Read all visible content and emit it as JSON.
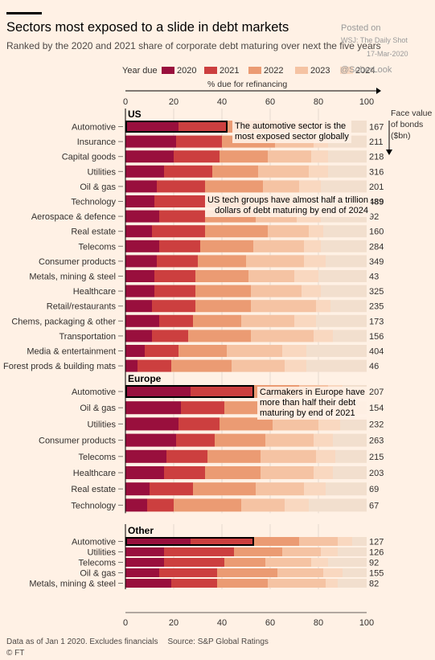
{
  "header": {
    "title": "Sectors most exposed to a slide in debt markets",
    "subtitle": "Ranked by the 2020 and 2021 share of corporate debt maturing over next the five years"
  },
  "watermark": {
    "posted_on": "Posted on",
    "source": "WSJ: The Daily Shot",
    "date": "17-Mar-2020",
    "handle": "@SoberLook"
  },
  "legend": {
    "title": "Year due",
    "items": [
      {
        "label": "2020",
        "color": "#990f3d"
      },
      {
        "label": "2021",
        "color": "#cc3f3f"
      },
      {
        "label": "2022",
        "color": "#eb9b73"
      },
      {
        "label": "2023",
        "color": "#f5c3a3"
      },
      {
        "label": "2024",
        "color": "#f9d8c0"
      }
    ]
  },
  "axis": {
    "label": "% due for refinancing",
    "ticks": [
      "0",
      "20",
      "40",
      "60",
      "80",
      "100"
    ]
  },
  "face_value_label": [
    "Face value",
    "of bonds",
    "($bn)"
  ],
  "annotations": [
    {
      "text": [
        "The automotive sector is the",
        "most exposed sector globally"
      ]
    },
    {
      "text": [
        "US tech groups have almost half a trillion",
        "dollars of debt maturing by end of 2024"
      ]
    },
    {
      "text": [
        "Carmakers in Europe have",
        "more than half their debt",
        "maturing by end of 2021"
      ]
    }
  ],
  "footer": {
    "note": "Data as of Jan 1 2020. Excludes financials",
    "source": "Source: S&P Global Ratings",
    "credit": "© FT"
  },
  "chart_data": {
    "type": "bar",
    "orientation": "horizontal-stacked",
    "xlim": [
      0,
      100
    ],
    "series_names": [
      "2020",
      "2021",
      "2022",
      "2023",
      "2024"
    ],
    "groups": [
      {
        "name": "US",
        "rows": [
          {
            "label": "Automotive",
            "values": [
              22,
              20,
              22,
              16,
              6
            ],
            "face_value": "167",
            "highlight": true
          },
          {
            "label": "Insurance",
            "values": [
              21,
              19,
              22,
              16,
              6
            ],
            "face_value": "211"
          },
          {
            "label": "Capital goods",
            "values": [
              20,
              19,
              20,
              18,
              7
            ],
            "face_value": "218"
          },
          {
            "label": "Utilities",
            "values": [
              16,
              20,
              19,
              21,
              8
            ],
            "face_value": "316"
          },
          {
            "label": "Oil & gas",
            "values": [
              13,
              20,
              24,
              15,
              9
            ],
            "face_value": "201"
          },
          {
            "label": "Technology",
            "values": [
              12,
              21,
              17,
              19,
              9
            ],
            "face_value": "489"
          },
          {
            "label": "Aerospace & defence",
            "values": [
              14,
              19,
              21,
              17,
              10
            ],
            "face_value": "92"
          },
          {
            "label": "Real estate",
            "values": [
              11,
              22,
              26,
              17,
              6
            ],
            "face_value": "160"
          },
          {
            "label": "Telecoms",
            "values": [
              14,
              17,
              22,
              21,
              7
            ],
            "face_value": "284"
          },
          {
            "label": "Consumer products",
            "values": [
              13,
              17,
              20,
              24,
              9
            ],
            "face_value": "349"
          },
          {
            "label": "Metals, mining & steel",
            "values": [
              12,
              17,
              22,
              19,
              10
            ],
            "face_value": "43"
          },
          {
            "label": "Healthcare",
            "values": [
              12,
              17,
              23,
              21,
              8
            ],
            "face_value": "325"
          },
          {
            "label": "Retail/restaurants",
            "values": [
              11,
              18,
              23,
              27,
              6
            ],
            "face_value": "235"
          },
          {
            "label": "Chems, packaging & other",
            "values": [
              14,
              14,
              20,
              22,
              9
            ],
            "face_value": "173"
          },
          {
            "label": "Transportation",
            "values": [
              11,
              15,
              26,
              26,
              8
            ],
            "face_value": "156"
          },
          {
            "label": "Media & entertainment",
            "values": [
              8,
              14,
              20,
              23,
              10
            ],
            "face_value": "404"
          },
          {
            "label": "Forest prods & building mats",
            "values": [
              5,
              14,
              25,
              22,
              9
            ],
            "face_value": "46"
          }
        ]
      },
      {
        "name": "Europe",
        "rows": [
          {
            "label": "Automotive",
            "values": [
              27,
              26,
              19,
              12,
              6
            ],
            "face_value": "207",
            "highlight": true
          },
          {
            "label": "Oil & gas",
            "values": [
              23,
              18,
              22,
              18,
              8
            ],
            "face_value": "154"
          },
          {
            "label": "Utilities",
            "values": [
              22,
              17,
              22,
              19,
              9
            ],
            "face_value": "232"
          },
          {
            "label": "Consumer products",
            "values": [
              21,
              16,
              21,
              20,
              8
            ],
            "face_value": "263"
          },
          {
            "label": "Telecoms",
            "values": [
              17,
              17,
              22,
              23,
              8
            ],
            "face_value": "215"
          },
          {
            "label": "Healthcare",
            "values": [
              16,
              17,
              23,
              22,
              8
            ],
            "face_value": "203"
          },
          {
            "label": "Real estate",
            "values": [
              10,
              18,
              26,
              20,
              9
            ],
            "face_value": "69"
          },
          {
            "label": "Technology",
            "values": [
              9,
              11,
              28,
              18,
              10
            ],
            "face_value": "67"
          }
        ]
      },
      {
        "name": "Other",
        "rows": [
          {
            "label": "Automotive",
            "values": [
              27,
              26,
              19,
              16,
              6
            ],
            "face_value": "127",
            "highlight": true
          },
          {
            "label": "Utilities",
            "values": [
              16,
              29,
              20,
              16,
              7
            ],
            "face_value": "126"
          },
          {
            "label": "Telecoms",
            "values": [
              16,
              25,
              17,
              19,
              7
            ],
            "face_value": "92"
          },
          {
            "label": "Oil & gas",
            "values": [
              14,
              24,
              25,
              19,
              8
            ],
            "face_value": "155"
          },
          {
            "label": "Metals, mining & steel",
            "values": [
              19,
              19,
              21,
              24,
              5
            ],
            "face_value": "82"
          }
        ]
      }
    ]
  }
}
